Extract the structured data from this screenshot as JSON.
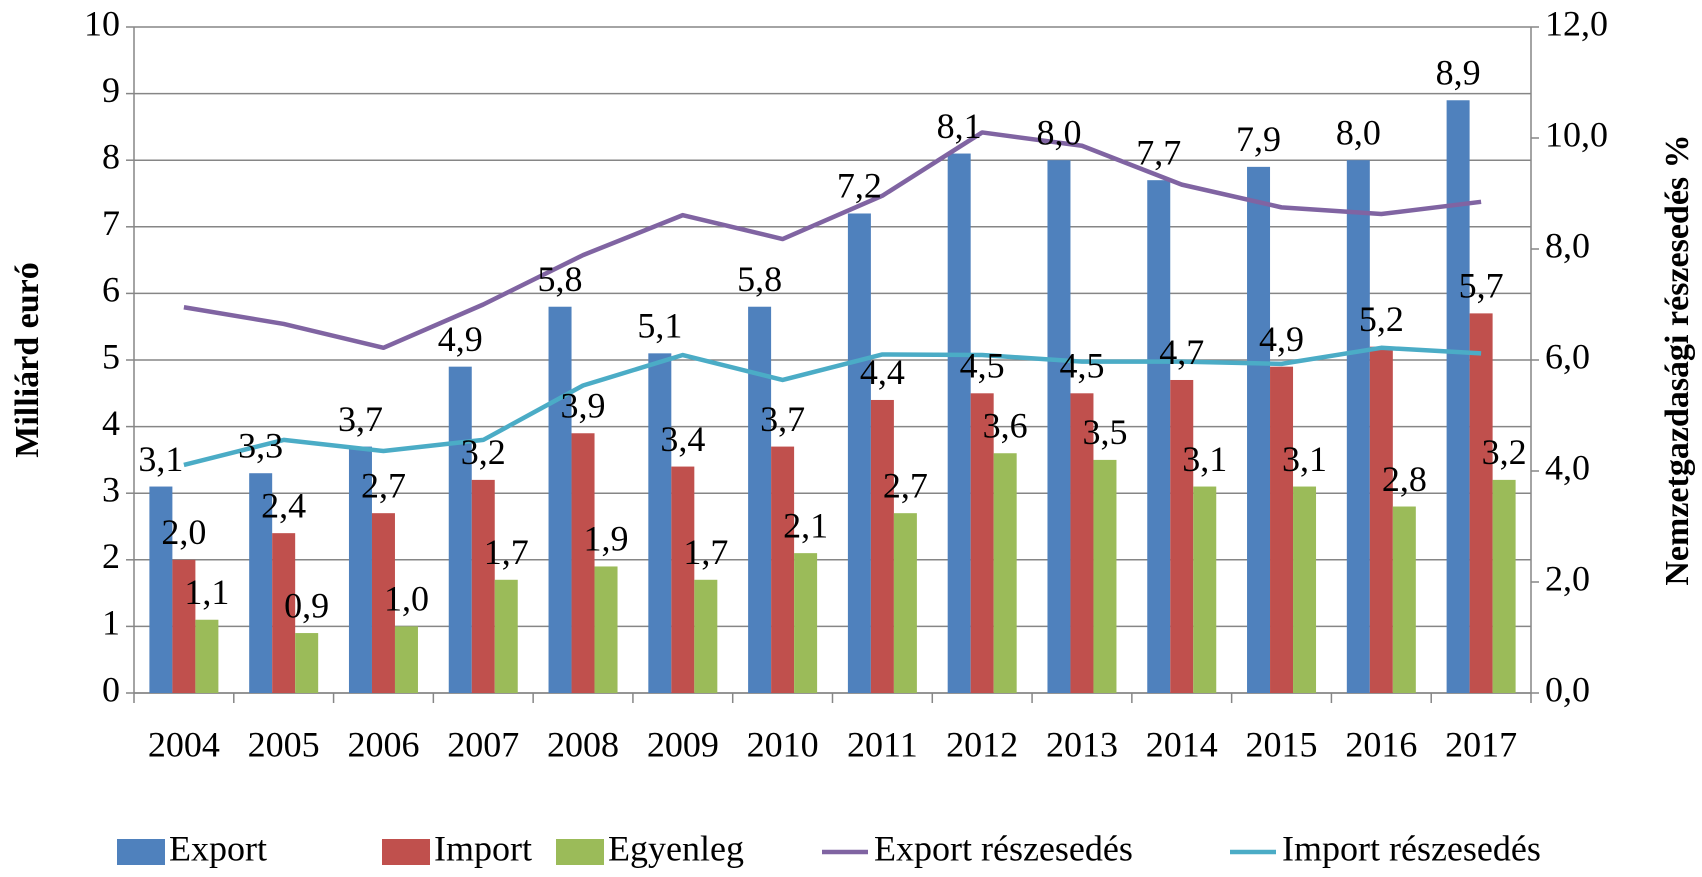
{
  "chart_data": {
    "type": "bar",
    "categories": [
      "2004",
      "2005",
      "2006",
      "2007",
      "2008",
      "2009",
      "2010",
      "2011",
      "2012",
      "2013",
      "2014",
      "2015",
      "2016",
      "2017"
    ],
    "ylabel": "Milliárd euró",
    "y2label": "Nemzetgazdasági részesedés %",
    "ylim": [
      0,
      10
    ],
    "yticks": [
      0,
      1,
      2,
      3,
      4,
      5,
      6,
      7,
      8,
      9,
      10
    ],
    "y2lim": [
      0,
      12
    ],
    "y2ticks": [
      {
        "value": 0,
        "label": "0,0"
      },
      {
        "value": 2,
        "label": "2,0"
      },
      {
        "value": 4,
        "label": "4,0"
      },
      {
        "value": 6,
        "label": "6,0"
      },
      {
        "value": 8,
        "label": "8,0"
      },
      {
        "value": 10,
        "label": "10,0"
      },
      {
        "value": 12,
        "label": "12,0"
      }
    ],
    "grid": true,
    "legend": "bottom",
    "series": [
      {
        "name": "Export",
        "type": "bar",
        "color": "#4f81bd",
        "values": [
          3.1,
          3.3,
          3.7,
          4.9,
          5.8,
          5.1,
          5.8,
          7.2,
          8.1,
          8.0,
          7.7,
          7.9,
          8.0,
          8.9
        ],
        "value_labels": [
          "3,1",
          "3,3",
          "3,7",
          "4,9",
          "5,8",
          "5,1",
          "5,8",
          "7,2",
          "8,1",
          "8,0",
          "7,7",
          "7,9",
          "8,0",
          "8,9"
        ]
      },
      {
        "name": "Import",
        "type": "bar",
        "color": "#c0504d",
        "values": [
          2.0,
          2.4,
          2.7,
          3.2,
          3.9,
          3.4,
          3.7,
          4.4,
          4.5,
          4.5,
          4.7,
          4.9,
          5.2,
          5.7
        ],
        "value_labels": [
          "2,0",
          "2,4",
          "2,7",
          "3,2",
          "3,9",
          "3,4",
          "3,7",
          "4,4",
          "4,5",
          "4,5",
          "4,7",
          "4,9",
          "5,2",
          "5,7"
        ]
      },
      {
        "name": "Egyenleg",
        "type": "bar",
        "color": "#9bbb59",
        "values": [
          1.1,
          0.9,
          1.0,
          1.7,
          1.9,
          1.7,
          2.1,
          2.7,
          3.6,
          3.5,
          3.1,
          3.1,
          2.8,
          3.2
        ],
        "value_labels": [
          "1,1",
          "0,9",
          "1,0",
          "1,7",
          "1,9",
          "1,7",
          "2,1",
          "2,7",
          "3,6",
          "3,5",
          "3,1",
          "3,1",
          "2,8",
          "3,2"
        ]
      },
      {
        "name": "Export részesedés",
        "type": "line",
        "axis": "y2",
        "color": "#8064a2",
        "values": [
          6.95,
          6.65,
          6.22,
          7.0,
          7.89,
          8.61,
          8.18,
          8.96,
          10.1,
          9.86,
          9.16,
          8.75,
          8.63,
          8.85
        ]
      },
      {
        "name": "Import részesedés",
        "type": "line",
        "axis": "y2",
        "color": "#4bacc6",
        "values": [
          4.11,
          4.56,
          4.36,
          4.56,
          5.54,
          6.09,
          5.64,
          6.1,
          6.09,
          5.97,
          5.97,
          5.93,
          6.22,
          6.12
        ]
      }
    ]
  }
}
